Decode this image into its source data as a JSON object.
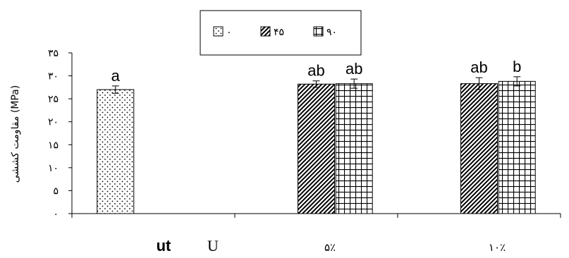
{
  "chart_data": {
    "type": "bar",
    "ylabel": "مقاومت کششی (MPa)",
    "ylim": [
      0,
      35
    ],
    "yticks": [
      "۰",
      "۵",
      "۱۰",
      "۱۵",
      "۲۰",
      "۲۵",
      "۳۰",
      "۳۵"
    ],
    "categories": [
      {
        "label": "ut",
        "extra": "U"
      },
      {
        "label": "۵٪"
      },
      {
        "label": "۱۰٪"
      }
    ],
    "series": [
      {
        "name": "۰",
        "pattern": "dots",
        "values": [
          27,
          null,
          null
        ],
        "errors": [
          0.8,
          null,
          null
        ],
        "sig": [
          "a",
          null,
          null
        ]
      },
      {
        "name": "۴۵",
        "pattern": "diagonal",
        "values": [
          null,
          28.2,
          28.3
        ],
        "errors": [
          null,
          0.7,
          1.3
        ],
        "sig": [
          null,
          "ab",
          "ab"
        ]
      },
      {
        "name": "۹۰",
        "pattern": "grid",
        "values": [
          null,
          28.3,
          28.8
        ],
        "errors": [
          null,
          1.0,
          1.0
        ],
        "sig": [
          null,
          "ab",
          "b"
        ]
      }
    ],
    "legend_position": "top-center",
    "grid": false
  }
}
